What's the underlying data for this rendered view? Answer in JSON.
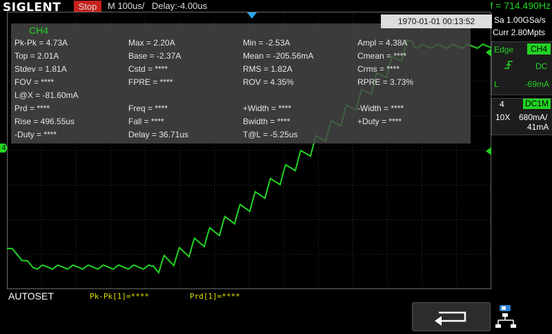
{
  "topbar": {
    "logo": "SIGLENT",
    "run_state": "Stop",
    "timebase": "M 100us/",
    "delay": "Delay:-4.00us",
    "frequency": "f = 714.490Hz"
  },
  "datetime": "1970-01-01 00:13:52",
  "measurements": {
    "channel": "CH4",
    "rows": [
      [
        "Pk-Pk = 4.73A",
        "Max = 2.20A",
        "Min = -2.53A",
        "Ampl = 4.38A"
      ],
      [
        "Top = 2.01A",
        "Base = -2.37A",
        "Mean = -205.56mA",
        "Cmean = ****"
      ],
      [
        "Stdev = 1.81A",
        "Cstd = ****",
        "RMS = 1.82A",
        "Crms = ****"
      ],
      [
        "FOV = ****",
        "FPRE = ****",
        "ROV = 4.35%",
        "RPRE = 3.73%"
      ],
      [
        "L@X = -81.60mA",
        "",
        "",
        ""
      ],
      [
        "Prd = ****",
        "Freq = ****",
        "+Width = ****",
        "-Width = ****"
      ],
      [
        "Rise = 496.55us",
        "Fall = ****",
        "Bwidth = ****",
        "+Duty = ****"
      ],
      [
        "-Duty = ****",
        "Delay = 36.71us",
        "T@L = -5.25us",
        ""
      ]
    ]
  },
  "right_panel": {
    "sample_rate": "Sa 1.00GSa/s",
    "memory": "Curr 2.80Mpts",
    "trigger": {
      "type": "Edge",
      "source": "CH4",
      "coupling": "DC",
      "level_label": "L",
      "level": "-69mA"
    },
    "channel": {
      "number": "4",
      "coupling": "DC1M",
      "probe": "10X",
      "scale": "680mA/",
      "offset": "41mA"
    }
  },
  "bottom": {
    "autoset": "AUTOSET",
    "measure1": "Pk-Pk[1]=****",
    "measure2": "Prd[1]=****"
  },
  "markers": {
    "channel_marker": "4"
  },
  "colors": {
    "trace": "#22d422",
    "run_state": "#c8201e",
    "trigger_position": "#2aa6e8",
    "bottom_measure": "#e0e000"
  }
}
